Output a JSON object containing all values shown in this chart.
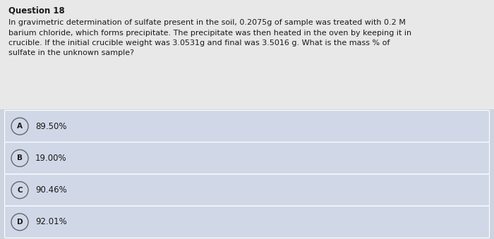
{
  "title": "Question 18",
  "question_line1": "In gravimetric determination of sulfate present in the soil, 0.2075g of sample was treated with 0.2 M",
  "question_line2": "barium chloride, which forms precipitate. The precipitate was then heated in the oven by keeping it in",
  "question_line3": "crucible. If the initial crucible weight was 3.0531g and final was 3.5016 g. What is the mass % of",
  "question_line4": "sulfate in the unknown sample?",
  "options": [
    {
      "label": "A",
      "text": "89.50%"
    },
    {
      "label": "B",
      "text": "19.00%"
    },
    {
      "label": "C",
      "text": "90.46%"
    },
    {
      "label": "D",
      "text": "92.01%"
    }
  ],
  "top_bg_color": "#e8e8e8",
  "options_area_bg_color": "#cdd4e0",
  "option_bg_color": "#d0d8e8",
  "option_border_color": "#ffffff",
  "title_color": "#1a1a1a",
  "question_color": "#1a1a1a",
  "option_text_color": "#1a1a1a",
  "circle_edge_color": "#666666",
  "circle_fill_color": "#d0d8e8",
  "title_fontsize": 8.5,
  "question_fontsize": 8.0,
  "option_fontsize": 8.5
}
